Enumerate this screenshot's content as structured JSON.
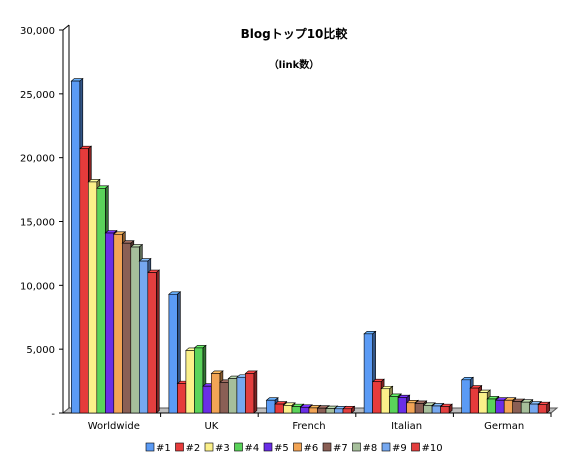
{
  "chart_data": {
    "type": "bar",
    "title": "Blogトップ10比較",
    "subtitle": "（link数）",
    "xlabel": "",
    "ylabel": "",
    "ylim": [
      0,
      30000
    ],
    "yticks": [
      "-",
      "5,000",
      "10,000",
      "15,000",
      "20,000",
      "25,000",
      "30,000"
    ],
    "grid": false,
    "legend_position": "bottom",
    "categories": [
      "Worldwide",
      "UK",
      "French",
      "Italian",
      "German"
    ],
    "series": [
      {
        "name": "#1",
        "color": "#5b9bf5",
        "values": [
          26000,
          9300,
          1000,
          6200,
          2600
        ]
      },
      {
        "name": "#2",
        "color": "#e63b3b",
        "values": [
          20700,
          2300,
          700,
          2450,
          1950
        ]
      },
      {
        "name": "#3",
        "color": "#fbf08a",
        "values": [
          18100,
          4900,
          600,
          1900,
          1600
        ]
      },
      {
        "name": "#4",
        "color": "#5ad35a",
        "values": [
          17600,
          5100,
          500,
          1300,
          1100
        ]
      },
      {
        "name": "#5",
        "color": "#6a2ee6",
        "values": [
          14100,
          2100,
          450,
          1200,
          1000
        ]
      },
      {
        "name": "#6",
        "color": "#f2a455",
        "values": [
          14000,
          3100,
          400,
          800,
          1000
        ]
      },
      {
        "name": "#7",
        "color": "#8a5f55",
        "values": [
          13300,
          2400,
          380,
          750,
          900
        ]
      },
      {
        "name": "#8",
        "color": "#a6bf9b",
        "values": [
          13000,
          2700,
          350,
          600,
          850
        ]
      },
      {
        "name": "#9",
        "color": "#76a8f0",
        "values": [
          11900,
          2800,
          330,
          550,
          700
        ]
      },
      {
        "name": "#10",
        "color": "#e33f3f",
        "values": [
          11000,
          3100,
          330,
          500,
          650
        ]
      }
    ]
  }
}
